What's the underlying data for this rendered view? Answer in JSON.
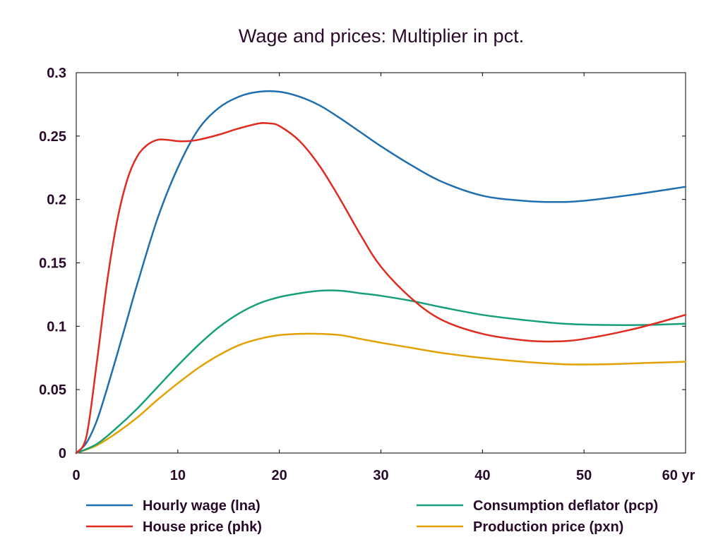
{
  "chart_data": {
    "type": "line",
    "title": "Wage and prices: Multiplier in pct.",
    "x_unit": "yr",
    "xlim": [
      0,
      60
    ],
    "ylim": [
      0,
      0.3
    ],
    "x_ticks": [
      0,
      10,
      20,
      30,
      40,
      50,
      60
    ],
    "x_tick_labels": [
      "0",
      "10",
      "20",
      "30",
      "40",
      "50",
      "60 yr"
    ],
    "y_ticks": [
      0,
      0.05,
      0.1,
      0.15,
      0.2,
      0.25,
      0.3
    ],
    "y_tick_labels": [
      "0",
      "0.05",
      "0.1",
      "0.15",
      "0.2",
      "0.25",
      "0.3"
    ],
    "grid": false,
    "legend_position": "bottom",
    "series": [
      {
        "name": "Hourly wage (lna)",
        "color": "#1f6fb0",
        "x": [
          0,
          1,
          2,
          3,
          4,
          5,
          6,
          8,
          10,
          12,
          14,
          16,
          18,
          20,
          22,
          24,
          26,
          28,
          30,
          33,
          36,
          40,
          44,
          47,
          50,
          55,
          60
        ],
        "y": [
          0,
          0.008,
          0.025,
          0.05,
          0.077,
          0.105,
          0.133,
          0.185,
          0.225,
          0.255,
          0.272,
          0.281,
          0.285,
          0.285,
          0.281,
          0.274,
          0.264,
          0.253,
          0.242,
          0.227,
          0.214,
          0.203,
          0.199,
          0.198,
          0.199,
          0.204,
          0.21
        ]
      },
      {
        "name": "House price (phk)",
        "color": "#e02b20",
        "x": [
          0,
          1,
          2,
          3,
          4,
          5,
          6,
          7,
          8,
          9,
          10,
          11,
          12,
          14,
          16,
          18,
          19,
          20,
          22,
          24,
          26,
          28,
          30,
          33,
          36,
          40,
          44,
          47,
          50,
          55,
          60
        ],
        "y": [
          0,
          0.013,
          0.07,
          0.133,
          0.182,
          0.215,
          0.234,
          0.243,
          0.247,
          0.247,
          0.246,
          0.246,
          0.247,
          0.251,
          0.256,
          0.26,
          0.26,
          0.258,
          0.246,
          0.226,
          0.2,
          0.172,
          0.147,
          0.122,
          0.105,
          0.094,
          0.089,
          0.088,
          0.09,
          0.098,
          0.109
        ]
      },
      {
        "name": "Consumption deflator (pcp)",
        "color": "#16a07a",
        "x": [
          0,
          2,
          4,
          6,
          8,
          10,
          12,
          14,
          16,
          18,
          20,
          22,
          24,
          26,
          28,
          30,
          33,
          36,
          40,
          44,
          48,
          52,
          56,
          60
        ],
        "y": [
          0,
          0.007,
          0.02,
          0.035,
          0.052,
          0.069,
          0.085,
          0.099,
          0.11,
          0.118,
          0.123,
          0.126,
          0.128,
          0.128,
          0.126,
          0.124,
          0.12,
          0.115,
          0.109,
          0.105,
          0.102,
          0.101,
          0.101,
          0.102
        ]
      },
      {
        "name": "Production price (pxn)",
        "color": "#e3a100",
        "x": [
          0,
          2,
          4,
          6,
          8,
          10,
          12,
          14,
          16,
          18,
          20,
          22,
          24,
          26,
          28,
          30,
          33,
          36,
          40,
          44,
          48,
          52,
          56,
          60
        ],
        "y": [
          0,
          0.006,
          0.016,
          0.028,
          0.042,
          0.055,
          0.067,
          0.077,
          0.085,
          0.09,
          0.093,
          0.094,
          0.094,
          0.093,
          0.09,
          0.087,
          0.083,
          0.079,
          0.075,
          0.072,
          0.07,
          0.07,
          0.071,
          0.072
        ]
      }
    ]
  }
}
